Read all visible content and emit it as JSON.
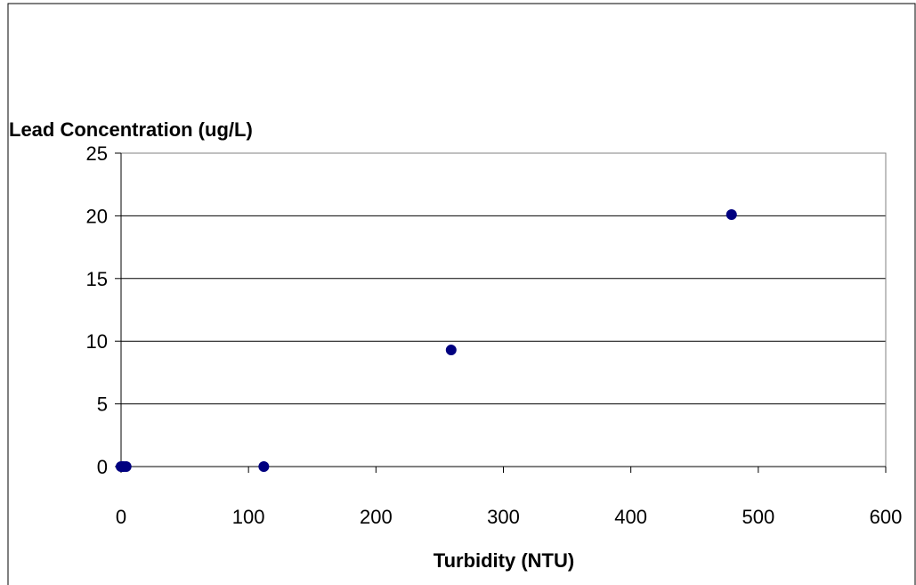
{
  "chart_data": {
    "type": "scatter",
    "title": "",
    "xlabel": "Turbidity (NTU)",
    "ylabel": "Lead Concentration (ug/L)",
    "xlim": [
      0,
      600
    ],
    "ylim": [
      0,
      25
    ],
    "x_ticks": [
      0,
      100,
      200,
      300,
      400,
      500,
      600
    ],
    "y_ticks": [
      0,
      5,
      10,
      15,
      20,
      25
    ],
    "grid": {
      "horizontal": true,
      "vertical": false
    },
    "legend": "none",
    "marker_color": "#000080",
    "series": [
      {
        "x": [
          0,
          1,
          2,
          4,
          112,
          259,
          479
        ],
        "y": [
          0,
          0,
          0,
          0,
          0,
          9.3,
          20.1
        ]
      }
    ]
  }
}
